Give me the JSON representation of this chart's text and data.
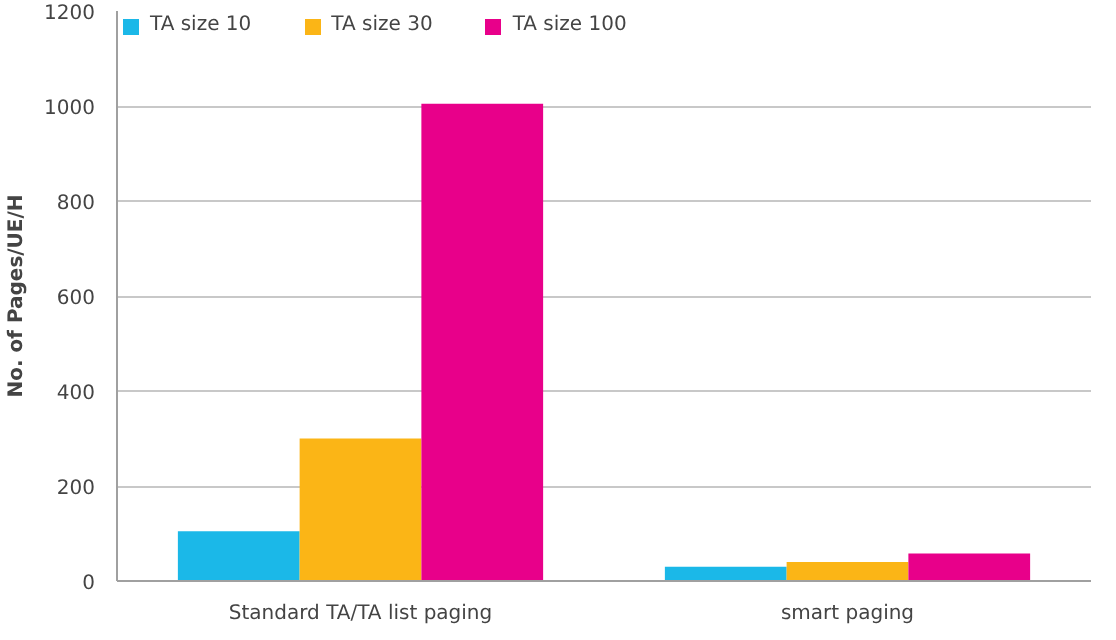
{
  "chart_data": {
    "type": "bar",
    "ylabel": "No. of Pages/UE/H",
    "categories": [
      "Standard TA/TA list paging",
      "smart paging"
    ],
    "series": [
      {
        "name": "TA size 10",
        "color": "#1bb8e8",
        "values": [
          105,
          30
        ]
      },
      {
        "name": "TA size 30",
        "color": "#fbb516",
        "values": [
          300,
          40
        ]
      },
      {
        "name": "TA size 100",
        "color": "#e8008a",
        "values": [
          1005,
          58
        ]
      }
    ],
    "ylim": [
      0,
      1200
    ],
    "yticks": [
      0,
      200,
      400,
      600,
      800,
      1000,
      1200
    ],
    "grid": "y",
    "legend": "top left"
  }
}
